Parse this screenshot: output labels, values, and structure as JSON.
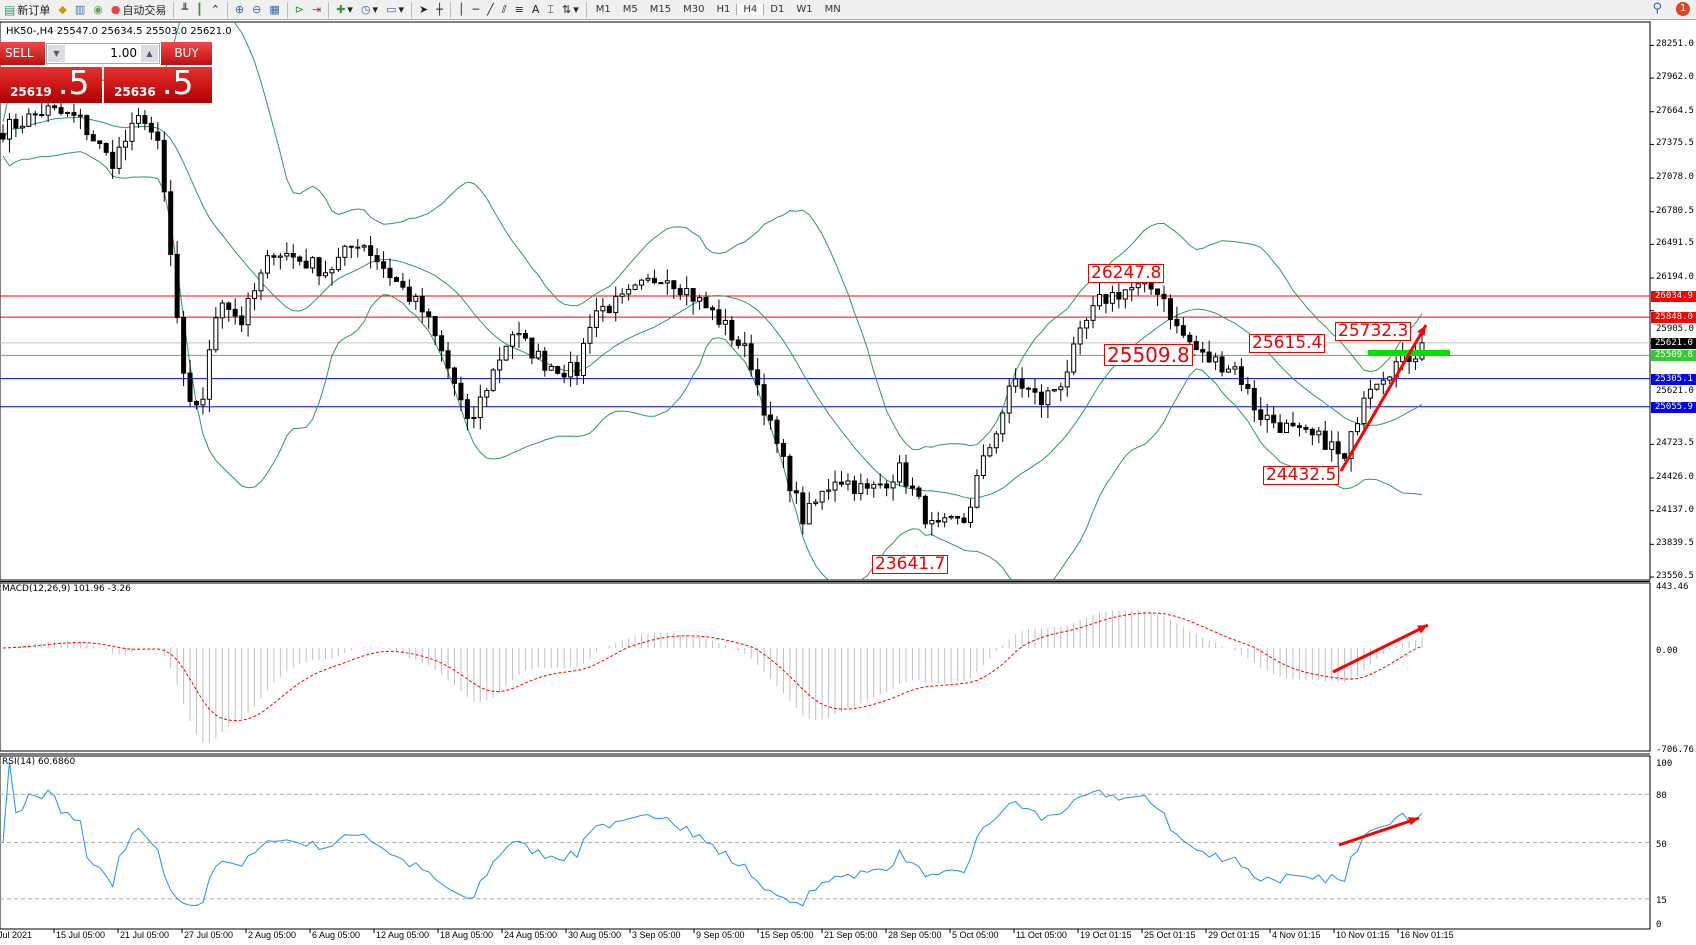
{
  "toolbar": {
    "new_order": "新订单",
    "auto_trading": "自动交易",
    "timeframes": [
      "M1",
      "M5",
      "M15",
      "M30",
      "H1",
      "H4",
      "D1",
      "W1",
      "MN"
    ],
    "active_timeframe": "H4",
    "notification_count": "1"
  },
  "symbol_info": "HK50-,H4  25547.0 25634.5 25503.0 25621.0",
  "trade_panel": {
    "sell_label": "SELL",
    "buy_label": "BUY",
    "lot": "1.00",
    "sell_price_main": "25619",
    "sell_price_big": ".5",
    "buy_price_main": "25636",
    "buy_price_big": ".5"
  },
  "price_axis": [
    "28251.0",
    "27962.0",
    "27664.5",
    "27375.5",
    "27078.0",
    "26780.5",
    "26491.5",
    "26194.0",
    "25905.0",
    "25621.0",
    "24723.5",
    "24426.0",
    "24137.0",
    "23839.5",
    "23550.5"
  ],
  "levels": [
    {
      "price": "26034.9",
      "color": "#ff0000"
    },
    {
      "price": "25848.0",
      "color": "#ff0000"
    },
    {
      "price": "25621.0",
      "color": "#000000",
      "line": "#c0c0c0"
    },
    {
      "price": "25509.8",
      "color": "#33cc33"
    },
    {
      "price": "25305.1",
      "color": "#0000ff"
    },
    {
      "price": "25055.9",
      "color": "#0000ff"
    }
  ],
  "annotations": [
    "26247.8",
    "25509.8",
    "25615.4",
    "25732.3",
    "24432.5",
    "23641.7"
  ],
  "macd": {
    "label": "MACD(12,26,9) 101.96 -3.26",
    "axis": [
      "443.46",
      "0.00",
      "-706.76"
    ]
  },
  "rsi": {
    "label": "RSI(14) 60.6860",
    "axis": [
      "100",
      "80",
      "50",
      "15",
      "0"
    ]
  },
  "time_axis": [
    "Jul 2021",
    "15 Jul 05:00",
    "21 Jul 05:00",
    "27 Jul 05:00",
    "2 Aug 05:00",
    "6 Aug 05:00",
    "12 Aug 05:00",
    "18 Aug 05:00",
    "24 Aug 05:00",
    "30 Aug 05:00",
    "3 Sep 05:00",
    "9 Sep 05:00",
    "15 Sep 05:00",
    "21 Sep 05:00",
    "28 Sep 05:00",
    "5 Oct 05:00",
    "11 Oct 05:00",
    "19 Oct 01:15",
    "25 Oct 01:15",
    "29 Oct 01:15",
    "4 Nov 01:15",
    "10 Nov 01:15",
    "16 Nov 01:15"
  ],
  "colors": {
    "bands": "#2a9d5a",
    "macd_signal": "#ff0000",
    "rsi": "#1e90ff",
    "arrow": "#ff0000",
    "support_bar": "#00e000"
  }
}
